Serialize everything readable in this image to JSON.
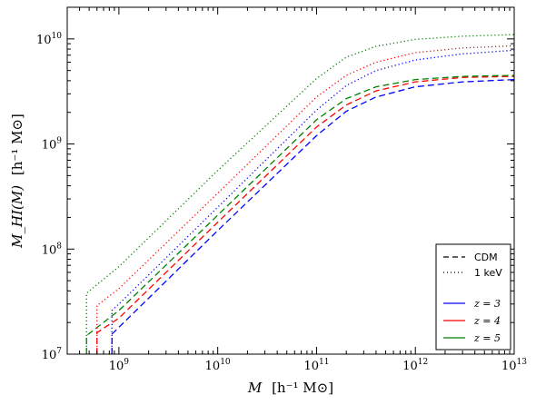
{
  "chart_data": {
    "type": "line",
    "xscale": "log",
    "yscale": "log",
    "xlim": [
      300000000.0,
      10000000000000.0
    ],
    "ylim": [
      10000000.0,
      20000000000.0
    ],
    "xlabel_main": "M",
    "xlabel_unit": "[h⁻¹ M⊙]",
    "ylabel_main": "M_HI(M)",
    "ylabel_unit": "[h⁻¹ M⊙]",
    "x_ticks": [
      {
        "value": 1000000000.0,
        "base": "10",
        "exp": "9"
      },
      {
        "value": 10000000000.0,
        "base": "10",
        "exp": "10"
      },
      {
        "value": 100000000000.0,
        "base": "10",
        "exp": "11"
      },
      {
        "value": 1000000000000.0,
        "base": "10",
        "exp": "12"
      },
      {
        "value": 10000000000000.0,
        "base": "10",
        "exp": "13"
      }
    ],
    "y_ticks": [
      {
        "value": 10000000.0,
        "base": "10",
        "exp": "7"
      },
      {
        "value": 100000000.0,
        "base": "10",
        "exp": "8"
      },
      {
        "value": 1000000000.0,
        "base": "10",
        "exp": "9"
      },
      {
        "value": 10000000000.0,
        "base": "10",
        "exp": "10"
      }
    ],
    "legend": {
      "placement": "bottom-right",
      "styles": [
        {
          "label": "CDM",
          "dash": "dashed"
        },
        {
          "label": "1 keV",
          "dash": "dotted"
        }
      ],
      "redshifts": [
        {
          "label": "z = 3",
          "color": "#0000ff"
        },
        {
          "label": "z = 4",
          "color": "#ff0000"
        },
        {
          "label": "z = 5",
          "color": "#008000"
        }
      ]
    },
    "series": [
      {
        "model": "CDM",
        "z": 3,
        "color": "#0000ff",
        "dash": "dashed",
        "x": [
          850000000.0,
          850000000.0,
          1000000000.0,
          10000000000.0,
          100000000000.0,
          200000000000.0,
          400000000000.0,
          1000000000000.0,
          3000000000000.0,
          10000000000000.0
        ],
        "y": [
          10000000.0,
          15500000.0,
          18000000.0,
          150000000.0,
          1200000000.0,
          2050000000.0,
          2800000000.0,
          3500000000.0,
          3900000000.0,
          4100000000.0
        ]
      },
      {
        "model": "CDM",
        "z": 4,
        "color": "#ff0000",
        "dash": "dashed",
        "x": [
          600000000.0,
          600000000.0,
          1000000000.0,
          10000000000.0,
          100000000000.0,
          200000000000.0,
          400000000000.0,
          1000000000000.0,
          3000000000000.0,
          10000000000000.0
        ],
        "y": [
          10000000.0,
          16000000.0,
          22000000.0,
          180000000.0,
          1450000000.0,
          2350000000.0,
          3200000000.0,
          3900000000.0,
          4300000000.0,
          4400000000.0
        ]
      },
      {
        "model": "CDM",
        "z": 5,
        "color": "#008000",
        "dash": "dashed",
        "x": [
          470000000.0,
          470000000.0,
          1000000000.0,
          10000000000.0,
          100000000000.0,
          200000000000.0,
          400000000000.0,
          1000000000000.0,
          3000000000000.0,
          10000000000000.0
        ],
        "y": [
          10000000.0,
          15000000.0,
          26000000.0,
          210000000.0,
          1700000000.0,
          2700000000.0,
          3500000000.0,
          4100000000.0,
          4400000000.0,
          4500000000.0
        ]
      },
      {
        "model": "1 keV",
        "z": 3,
        "color": "#0000ff",
        "dash": "dotted",
        "x": [
          850000000.0,
          850000000.0,
          1000000000.0,
          10000000000.0,
          100000000000.0,
          200000000000.0,
          400000000000.0,
          1000000000000.0,
          3000000000000.0,
          10000000000000.0
        ],
        "y": [
          10000000.0,
          26000000.0,
          30000000.0,
          250000000.0,
          2100000000.0,
          3600000000.0,
          5000000000.0,
          6300000000.0,
          7200000000.0,
          7800000000.0
        ]
      },
      {
        "model": "1 keV",
        "z": 4,
        "color": "#ff0000",
        "dash": "dotted",
        "x": [
          600000000.0,
          600000000.0,
          1000000000.0,
          10000000000.0,
          100000000000.0,
          200000000000.0,
          400000000000.0,
          1000000000000.0,
          3000000000000.0,
          10000000000000.0
        ],
        "y": [
          10000000.0,
          29000000.0,
          42000000.0,
          340000000.0,
          2800000000.0,
          4500000000.0,
          6000000000.0,
          7400000000.0,
          8200000000.0,
          8600000000.0
        ]
      },
      {
        "model": "1 keV",
        "z": 5,
        "color": "#008000",
        "dash": "dotted",
        "x": [
          470000000.0,
          470000000.0,
          1000000000.0,
          10000000000.0,
          100000000000.0,
          200000000000.0,
          400000000000.0,
          1000000000000.0,
          3000000000000.0,
          10000000000000.0
        ],
        "y": [
          10000000.0,
          38000000.0,
          68000000.0,
          560000000.0,
          4200000000.0,
          6700000000.0,
          8500000000.0,
          9900000000.0,
          10600000000.0,
          11000000000.0
        ]
      }
    ]
  }
}
